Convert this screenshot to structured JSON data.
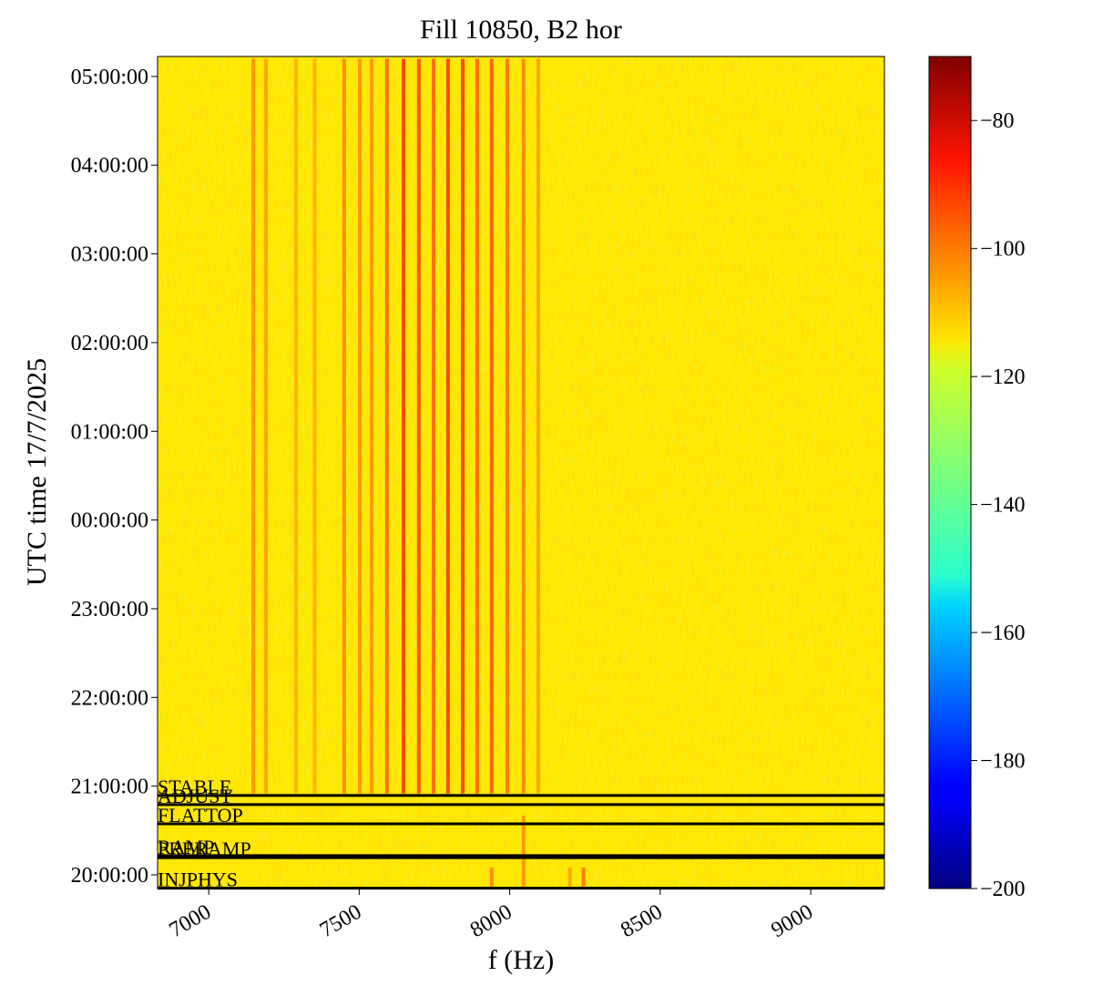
{
  "chart_data": {
    "type": "spectrogram",
    "title": "Fill 10850, B2 hor",
    "x_label": "f (Hz)",
    "y_label": "UTC time 17/7/2025",
    "xlim": [
      6830,
      9245
    ],
    "xticks": [
      7000,
      7500,
      8000,
      8500,
      9000
    ],
    "ylim": [
      "19:50:45",
      "05:13:30"
    ],
    "yticks": [
      "20:00:00",
      "21:00:00",
      "22:00:00",
      "23:00:00",
      "00:00:00",
      "01:00:00",
      "02:00:00",
      "03:00:00",
      "04:00:00",
      "05:00:00"
    ],
    "colormap": "jet",
    "clim": [
      -200,
      -70
    ],
    "cticks": [
      {
        "value": -200,
        "label": "−200"
      },
      {
        "value": -180,
        "label": "−180"
      },
      {
        "value": -160,
        "label": "−160"
      },
      {
        "value": -140,
        "label": "−140"
      },
      {
        "value": -120,
        "label": "−120"
      },
      {
        "value": -100,
        "label": "−100"
      },
      {
        "value": -80,
        "label": "−80"
      }
    ],
    "background_level": -116,
    "stripes": {
      "freq": [
        7148,
        7190,
        7290,
        7352,
        7450,
        7502,
        7541,
        7592,
        7647,
        7698,
        7747,
        7795,
        7844,
        7892,
        7940,
        7992,
        8046,
        8095,
        8046,
        8200,
        8245,
        7940
      ],
      "start": [
        "20:55:00",
        "20:55:00",
        "20:55:00",
        "20:55:00",
        "20:55:00",
        "20:55:00",
        "20:55:00",
        "20:55:00",
        "20:55:00",
        "20:55:00",
        "20:55:00",
        "20:55:00",
        "20:55:00",
        "20:55:00",
        "20:55:00",
        "20:55:00",
        "20:55:00",
        "20:55:00",
        "19:52:00",
        "19:52:00",
        "19:52:00",
        "19:52:00"
      ],
      "end": [
        "05:12:00",
        "05:12:00",
        "05:12:00",
        "05:12:00",
        "05:12:00",
        "05:12:00",
        "05:12:00",
        "05:12:00",
        "05:12:00",
        "05:12:00",
        "05:12:00",
        "05:12:00",
        "05:12:00",
        "05:12:00",
        "05:12:00",
        "05:12:00",
        "05:12:00",
        "05:12:00",
        "20:40:00",
        "20:05:00",
        "20:05:00",
        "20:05:00"
      ],
      "level": [
        -104,
        -106,
        -108,
        -108,
        -102,
        -104,
        -104,
        -98,
        -92,
        -94,
        -98,
        -92,
        -92,
        -98,
        -96,
        -100,
        -102,
        -106,
        -104,
        -106,
        -100,
        -102
      ]
    },
    "phases": {
      "names": [
        "STABLE",
        "ADJUST",
        "FLATTOP",
        "RAMP",
        "PRERAMP",
        "INJPHYS"
      ],
      "times": [
        "20:53:40",
        "20:47:30",
        "20:34:30",
        "20:13:00",
        "20:11:40",
        "19:51:00"
      ]
    }
  }
}
